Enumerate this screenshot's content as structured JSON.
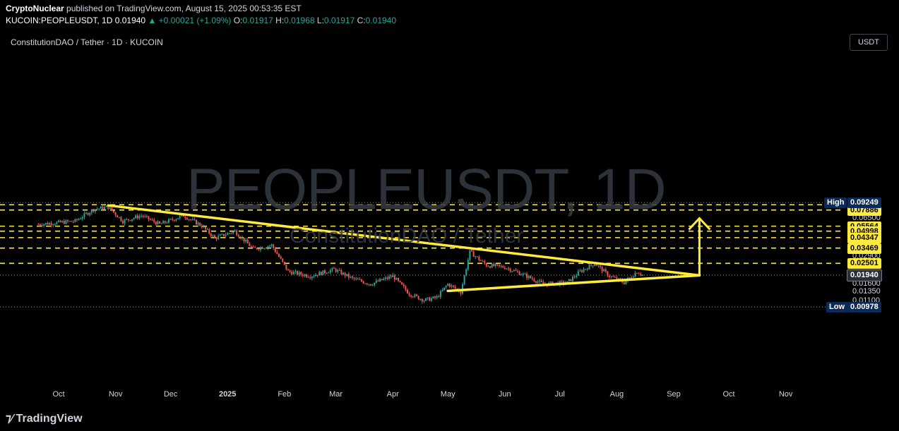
{
  "header": {
    "author": "CryptoNuclear",
    "published": "published on TradingView.com, August 15, 2025 00:53:35 EST",
    "symbol": "KUCOIN:PEOPLEUSDT, 1D",
    "last": "0.01940",
    "change": "▲ +0.00021 (+1.09%)",
    "o_label": "O:",
    "o": "0.01917",
    "h_label": "H:",
    "h": "0.01968",
    "l_label": "L:",
    "l": "0.01917",
    "c_label": "C:",
    "c": "0.01940"
  },
  "chart_title": "ConstitutionDAO / Tether · 1D · KUCOIN",
  "watermark": {
    "big": "PEOPLEUSDT, 1D",
    "small": "ConstitutionDAO / Tether"
  },
  "currency": "USDT",
  "brand": "TradingView",
  "colors": {
    "up": "#26a69a",
    "down": "#ef5350",
    "pattern": "#ffeb3b",
    "background": "#000000"
  },
  "chart_data": {
    "type": "candlestick",
    "scale": "log",
    "x_ticks": [
      "Oct",
      "Nov",
      "Dec",
      "2025",
      "Feb",
      "Mar",
      "Apr",
      "May",
      "Jun",
      "Jul",
      "Aug",
      "Sep",
      "Oct",
      "Nov"
    ],
    "y_ticks": [
      "0.06500",
      "0.02900",
      "0.02300",
      "0.01600",
      "0.01350",
      "0.01100",
      "0.00920"
    ],
    "high_label": "High",
    "high_value": "0.09249",
    "low_label": "Low",
    "low_value": "0.00978",
    "last_price": "0.01940",
    "levels": [
      "0.08827",
      "0.07886",
      "0.05564",
      "0.04998",
      "0.04347",
      "0.03469",
      "0.02501"
    ],
    "trendlines": [
      {
        "name": "descending resistance",
        "from": [
          "2024-10-28",
          0.087
        ],
        "to": [
          "2025-09-15",
          0.0193
        ]
      },
      {
        "name": "ascending support",
        "from": [
          "2025-05-01",
          0.0138
        ],
        "to": [
          "2025-09-15",
          0.0193
        ]
      }
    ],
    "target_arrow": {
      "date": "2025-09-15",
      "from": 0.0193,
      "to": 0.066
    },
    "anchors": [
      [
        "2024-09-20",
        0.058
      ],
      [
        "2024-10-10",
        0.062
      ],
      [
        "2024-10-20",
        0.08
      ],
      [
        "2024-10-28",
        0.084
      ],
      [
        "2024-11-05",
        0.062
      ],
      [
        "2024-11-15",
        0.07
      ],
      [
        "2024-11-25",
        0.058
      ],
      [
        "2024-12-08",
        0.07
      ],
      [
        "2024-12-18",
        0.056
      ],
      [
        "2024-12-25",
        0.043
      ],
      [
        "2025-01-05",
        0.05
      ],
      [
        "2025-01-15",
        0.034
      ],
      [
        "2025-01-25",
        0.037
      ],
      [
        "2025-02-03",
        0.021
      ],
      [
        "2025-02-15",
        0.019
      ],
      [
        "2025-02-28",
        0.022
      ],
      [
        "2025-03-10",
        0.018
      ],
      [
        "2025-03-20",
        0.016
      ],
      [
        "2025-04-01",
        0.019
      ],
      [
        "2025-04-10",
        0.013
      ],
      [
        "2025-04-18",
        0.0113
      ],
      [
        "2025-04-25",
        0.012
      ],
      [
        "2025-05-01",
        0.016
      ],
      [
        "2025-05-08",
        0.0135
      ],
      [
        "2025-05-13",
        0.032
      ],
      [
        "2025-05-22",
        0.024
      ],
      [
        "2025-06-01",
        0.023
      ],
      [
        "2025-06-10",
        0.02
      ],
      [
        "2025-06-22",
        0.016
      ],
      [
        "2025-07-05",
        0.0165
      ],
      [
        "2025-07-12",
        0.021
      ],
      [
        "2025-07-20",
        0.025
      ],
      [
        "2025-07-28",
        0.019
      ],
      [
        "2025-08-05",
        0.0165
      ],
      [
        "2025-08-12",
        0.021
      ],
      [
        "2025-08-15",
        0.0194
      ]
    ]
  }
}
